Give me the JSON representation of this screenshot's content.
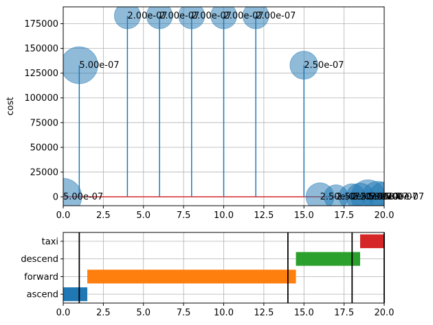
{
  "chart_data": [
    {
      "type": "scatter",
      "subtype": "stem-bubble",
      "ylabel": "cost",
      "xlabel": "",
      "xlim": [
        0,
        20
      ],
      "ylim": [
        -9000,
        192000
      ],
      "xticks": [
        "0.0",
        "2.5",
        "5.0",
        "7.5",
        "10.0",
        "12.5",
        "15.0",
        "17.5",
        "20.0"
      ],
      "xtick_values": [
        0,
        2.5,
        5,
        7.5,
        10,
        12.5,
        15,
        17.5,
        20
      ],
      "yticks": [
        "0",
        "25000",
        "50000",
        "75000",
        "100000",
        "125000",
        "150000",
        "175000"
      ],
      "ytick_values": [
        0,
        25000,
        50000,
        75000,
        100000,
        125000,
        150000,
        175000
      ],
      "grid": true,
      "baseline": 0,
      "colors": {
        "stem": "#1f77b4",
        "bubble": "#1f77b4",
        "baseline": "#d62728"
      },
      "points": [
        {
          "x": 0,
          "y": 0,
          "label": "5.00e-07",
          "weight": 2.0,
          "stem": false
        },
        {
          "x": 1,
          "y": 133000,
          "label": "5.00e-07",
          "weight": 2.0,
          "stem": true
        },
        {
          "x": 4,
          "y": 183000,
          "label": "2.00e-07",
          "weight": 1.0,
          "stem": true
        },
        {
          "x": 6,
          "y": 183000,
          "label": "2.00e-07",
          "weight": 1.0,
          "stem": true
        },
        {
          "x": 8,
          "y": 183000,
          "label": "2.00e-07",
          "weight": 1.0,
          "stem": true
        },
        {
          "x": 10,
          "y": 183000,
          "label": "2.00e-07",
          "weight": 1.0,
          "stem": true
        },
        {
          "x": 12,
          "y": 183000,
          "label": "2.00e-07",
          "weight": 1.0,
          "stem": true
        },
        {
          "x": 15,
          "y": 133000,
          "label": "2.50e-07",
          "weight": 1.15,
          "stem": true
        },
        {
          "x": 16,
          "y": 0,
          "label": "2.50e-07",
          "weight": 1.15,
          "stem": false
        },
        {
          "x": 17,
          "y": 0,
          "label": "2.50e-07",
          "weight": 0.85,
          "stem": false
        },
        {
          "x": 18,
          "y": 0,
          "label": "2.50e-07",
          "weight": 1.0,
          "stem": false
        },
        {
          "x": 18.5,
          "y": 0,
          "label": "2.50e-07",
          "weight": 1.1,
          "stem": false
        },
        {
          "x": 19,
          "y": 0,
          "label": "5.00e-07",
          "weight": 1.7,
          "stem": false
        },
        {
          "x": 19.6,
          "y": 0,
          "label": "5.00e-07",
          "weight": 1.4,
          "stem": false
        },
        {
          "x": 20,
          "y": 0,
          "label": "5.00e-07",
          "weight": 1.3,
          "stem": false
        }
      ]
    },
    {
      "type": "bar",
      "subtype": "gantt",
      "xlim": [
        0,
        20
      ],
      "xticks": [
        "0.0",
        "2.5",
        "5.0",
        "7.5",
        "10.0",
        "12.5",
        "15.0",
        "17.5",
        "20.0"
      ],
      "xtick_values": [
        0,
        2.5,
        5,
        7.5,
        10,
        12.5,
        15,
        17.5,
        20
      ],
      "categories": [
        "ascend",
        "forward",
        "descend",
        "taxi"
      ],
      "grid": true,
      "tasks": [
        {
          "category": "ascend",
          "start": 0,
          "end": 1.5,
          "color": "#1f77b4"
        },
        {
          "category": "forward",
          "start": 1.5,
          "end": 14.5,
          "color": "#ff7f0e"
        },
        {
          "category": "descend",
          "start": 14.5,
          "end": 18.5,
          "color": "#2ca02c"
        },
        {
          "category": "taxi",
          "start": 18.5,
          "end": 20,
          "color": "#d62728"
        }
      ],
      "vertical_lines": [
        1,
        14,
        18,
        20
      ],
      "vertical_line_color": "#000000"
    }
  ]
}
